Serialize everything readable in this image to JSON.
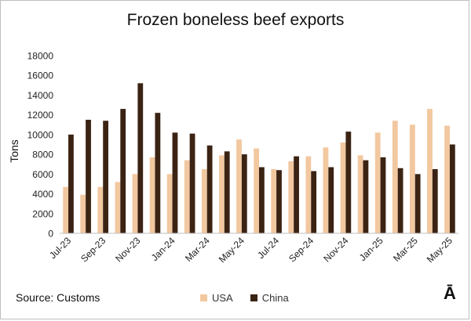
{
  "chart_data": {
    "type": "bar",
    "title": "Frozen boneless beef exports",
    "ylabel": "Tons",
    "xlabel": "",
    "ylim": [
      0,
      18000
    ],
    "yticks": [
      0,
      2000,
      4000,
      6000,
      8000,
      10000,
      12000,
      14000,
      16000,
      18000
    ],
    "categories": [
      "Jul-23",
      "Aug-23",
      "Sep-23",
      "Oct-23",
      "Nov-23",
      "Dec-23",
      "Jan-24",
      "Feb-24",
      "Mar-24",
      "Apr-24",
      "May-24",
      "Jun-24",
      "Jul-24",
      "Aug-24",
      "Sep-24",
      "Oct-24",
      "Nov-24",
      "Dec-24",
      "Jan-25",
      "Feb-25",
      "Mar-25",
      "Apr-25",
      "May-25"
    ],
    "tick_labels": [
      "Jul-23",
      "Sep-23",
      "Nov-23",
      "Jan-24",
      "Mar-24",
      "May-24",
      "Jul-24",
      "Sep-24",
      "Nov-24",
      "Jan-25",
      "Mar-25",
      "May-25"
    ],
    "legend_position": "bottom",
    "series": [
      {
        "name": "USA",
        "color": "#f2c8a0",
        "values": [
          4700,
          3900,
          4700,
          5200,
          6000,
          7700,
          6000,
          7400,
          6500,
          7900,
          9500,
          8600,
          6500,
          7300,
          7800,
          8700,
          9200,
          7900,
          10200,
          11400,
          11000,
          12600,
          10900
        ]
      },
      {
        "name": "China",
        "color": "#3b2314",
        "values": [
          10000,
          11500,
          11400,
          12600,
          15200,
          12200,
          10200,
          10100,
          8900,
          8300,
          8000,
          6700,
          6400,
          7800,
          6300,
          6700,
          10300,
          7400,
          7700,
          6600,
          6000,
          6500,
          9000
        ]
      }
    ]
  },
  "source": "Source: Customs",
  "logo": "Ā"
}
